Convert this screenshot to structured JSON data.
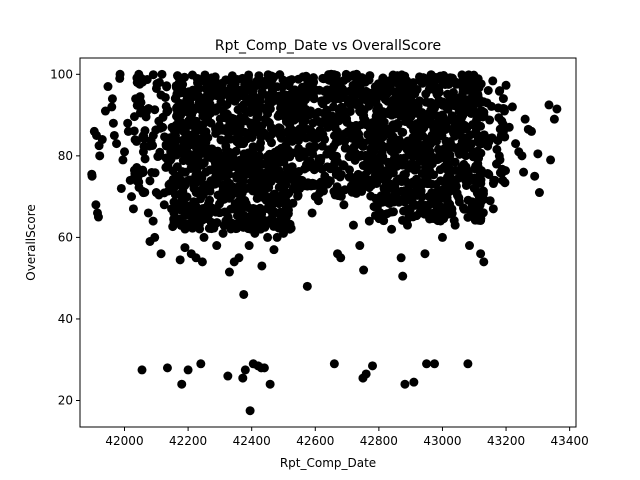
{
  "chart_data": {
    "type": "scatter",
    "title": "Rpt_Comp_Date vs OverallScore",
    "xlabel": "Rpt_Comp_Date",
    "ylabel": "OverallScore",
    "xlim": [
      41860,
      43420
    ],
    "ylim": [
      13.5,
      104
    ],
    "xticks": [
      42000,
      42200,
      42400,
      42600,
      42800,
      43000,
      43200,
      43400
    ],
    "yticks": [
      20,
      40,
      60,
      80,
      100
    ],
    "grid": false,
    "legend": "none",
    "marker_color": "#000000",
    "series": [
      {
        "dense_clusters": [
          {
            "x_range": [
              42150,
              42530
            ],
            "y_range": [
              62,
              100
            ],
            "count": 900
          },
          {
            "x_range": [
              42530,
              42780
            ],
            "y_range": [
              70,
              100
            ],
            "count": 350
          },
          {
            "x_range": [
              42780,
              43130
            ],
            "y_range": [
              64,
              100
            ],
            "count": 750
          },
          {
            "x_range": [
              42030,
              42150
            ],
            "y_range": [
              70,
              100
            ],
            "count": 80
          },
          {
            "x_range": [
              43130,
              43200
            ],
            "y_range": [
              72,
              99
            ],
            "count": 40
          }
        ],
        "points": [
          [
            41897,
            75.5
          ],
          [
            41898,
            75
          ],
          [
            41905,
            86
          ],
          [
            41912,
            85
          ],
          [
            41910,
            68
          ],
          [
            41915,
            66
          ],
          [
            41918,
            65
          ],
          [
            41920,
            82.5
          ],
          [
            41922,
            80
          ],
          [
            41930,
            84
          ],
          [
            41940,
            91
          ],
          [
            41948,
            97
          ],
          [
            41960,
            92
          ],
          [
            41962,
            94
          ],
          [
            41965,
            88
          ],
          [
            41968,
            85
          ],
          [
            41975,
            83
          ],
          [
            41985,
            99
          ],
          [
            41986,
            100
          ],
          [
            41990,
            72
          ],
          [
            41995,
            79
          ],
          [
            42000,
            81
          ],
          [
            42010,
            88
          ],
          [
            42012,
            86
          ],
          [
            42018,
            74
          ],
          [
            42022,
            70
          ],
          [
            42028,
            67
          ],
          [
            42035,
            94
          ],
          [
            42040,
            98
          ],
          [
            42045,
            100
          ],
          [
            42055,
            27.5
          ],
          [
            42060,
            85
          ],
          [
            42080,
            59
          ],
          [
            42095,
            60
          ],
          [
            42115,
            56
          ],
          [
            42120,
            87
          ],
          [
            42135,
            28
          ],
          [
            42148,
            67
          ],
          [
            42175,
            54.5
          ],
          [
            42180,
            24
          ],
          [
            42190,
            57.5
          ],
          [
            42200,
            27.5
          ],
          [
            42210,
            56
          ],
          [
            42225,
            55
          ],
          [
            42240,
            29
          ],
          [
            42245,
            54
          ],
          [
            42250,
            60
          ],
          [
            42260,
            65
          ],
          [
            42290,
            58
          ],
          [
            42310,
            61
          ],
          [
            42325,
            26
          ],
          [
            42330,
            51.5
          ],
          [
            42345,
            54
          ],
          [
            42360,
            55
          ],
          [
            42372,
            25.5
          ],
          [
            42375,
            46
          ],
          [
            42380,
            27.5
          ],
          [
            42392,
            58
          ],
          [
            42395,
            17.5
          ],
          [
            42398,
            62
          ],
          [
            42405,
            29
          ],
          [
            42410,
            61
          ],
          [
            42420,
            28.5
          ],
          [
            42430,
            28
          ],
          [
            42432,
            53
          ],
          [
            42440,
            28
          ],
          [
            42450,
            60
          ],
          [
            42458,
            24
          ],
          [
            42470,
            57
          ],
          [
            42480,
            60
          ],
          [
            42500,
            61
          ],
          [
            42520,
            62
          ],
          [
            42558,
            74
          ],
          [
            42575,
            48
          ],
          [
            42600,
            70
          ],
          [
            42620,
            73
          ],
          [
            42660,
            29
          ],
          [
            42670,
            56
          ],
          [
            42680,
            55
          ],
          [
            42720,
            63
          ],
          [
            42740,
            58
          ],
          [
            42750,
            25.5
          ],
          [
            42752,
            52
          ],
          [
            42760,
            26.5
          ],
          [
            42770,
            64
          ],
          [
            42780,
            28.5
          ],
          [
            42800,
            65
          ],
          [
            42840,
            62
          ],
          [
            42870,
            55
          ],
          [
            42875,
            50.5
          ],
          [
            42882,
            24
          ],
          [
            42890,
            63
          ],
          [
            42910,
            24.5
          ],
          [
            42930,
            66
          ],
          [
            42945,
            56
          ],
          [
            42950,
            29
          ],
          [
            42975,
            29
          ],
          [
            43000,
            60
          ],
          [
            43040,
            63
          ],
          [
            43080,
            29
          ],
          [
            43085,
            58
          ],
          [
            43120,
            56
          ],
          [
            43130,
            54
          ],
          [
            43165,
            74
          ],
          [
            43160,
            67
          ],
          [
            43195,
            91
          ],
          [
            43210,
            87
          ],
          [
            43220,
            92
          ],
          [
            43230,
            83
          ],
          [
            43240,
            81
          ],
          [
            43250,
            80
          ],
          [
            43255,
            76
          ],
          [
            43260,
            89
          ],
          [
            43270,
            86.5
          ],
          [
            43280,
            86
          ],
          [
            43290,
            75
          ],
          [
            43300,
            80.5
          ],
          [
            43305,
            71
          ],
          [
            43335,
            92.5
          ],
          [
            43340,
            79
          ],
          [
            43352,
            89
          ],
          [
            43360,
            91.5
          ],
          [
            43170,
            78
          ],
          [
            43180,
            96
          ],
          [
            43150,
            69
          ],
          [
            43140,
            93
          ],
          [
            43185,
            85
          ],
          [
            42075,
            66
          ],
          [
            42090,
            64
          ],
          [
            42100,
            71
          ],
          [
            42110,
            98
          ],
          [
            42125,
            68
          ],
          [
            42560,
            93
          ],
          [
            42590,
            66
          ],
          [
            42610,
            69
          ],
          [
            42630,
            75
          ],
          [
            42650,
            100
          ],
          [
            42700,
            99
          ],
          [
            42690,
            68
          ],
          [
            42730,
            100
          ]
        ]
      }
    ]
  }
}
